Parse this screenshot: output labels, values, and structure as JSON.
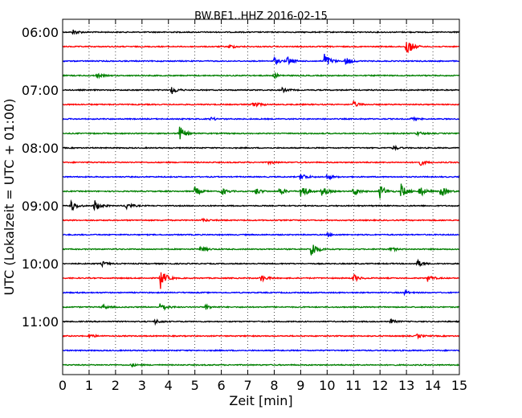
{
  "chart_data": {
    "type": "line",
    "title": "BW.BE1..HHZ 2016-02-15",
    "xlabel": "Zeit  [min]",
    "ylabel": "UTC (Lokalzeit = UTC + 01:00)",
    "xlim": [
      0,
      15
    ],
    "x_ticks": [
      "0",
      "1",
      "2",
      "3",
      "4",
      "5",
      "6",
      "7",
      "8",
      "9",
      "10",
      "11",
      "12",
      "13",
      "14",
      "15"
    ],
    "y_tick_labels": [
      "06:00",
      "07:00",
      "08:00",
      "09:00",
      "10:00",
      "11:00"
    ],
    "grid": "vertical dotted",
    "colors": [
      "#000000",
      "#ff0000",
      "#0000ff",
      "#008000"
    ],
    "traces": [
      {
        "start": "06:00",
        "events": [
          {
            "x": 0.4,
            "amp": 0.25
          }
        ]
      },
      {
        "start": "06:15",
        "events": [
          {
            "x": 13.0,
            "amp": 1.0
          },
          {
            "x": 6.3,
            "amp": 0.2
          }
        ]
      },
      {
        "start": "06:30",
        "events": [
          {
            "x": 8.0,
            "amp": 0.35
          },
          {
            "x": 8.5,
            "amp": 0.4
          },
          {
            "x": 9.9,
            "amp": 0.8
          },
          {
            "x": 10.7,
            "amp": 0.4
          }
        ]
      },
      {
        "start": "06:45",
        "events": [
          {
            "x": 1.3,
            "amp": 0.2
          },
          {
            "x": 8.0,
            "amp": 0.2
          }
        ]
      },
      {
        "start": "07:00",
        "events": [
          {
            "x": 4.1,
            "amp": 0.45
          },
          {
            "x": 8.3,
            "amp": 0.2
          }
        ]
      },
      {
        "start": "07:15",
        "events": [
          {
            "x": 7.2,
            "amp": 0.4
          },
          {
            "x": 11.0,
            "amp": 0.3
          }
        ]
      },
      {
        "start": "07:30",
        "events": [
          {
            "x": 5.6,
            "amp": 0.15
          },
          {
            "x": 13.2,
            "amp": 0.15
          }
        ]
      },
      {
        "start": "07:45",
        "events": [
          {
            "x": 4.4,
            "amp": 0.8
          },
          {
            "x": 13.4,
            "amp": 0.2
          }
        ]
      },
      {
        "start": "08:00",
        "events": [
          {
            "x": 12.5,
            "amp": 0.2
          }
        ]
      },
      {
        "start": "08:15",
        "events": [
          {
            "x": 13.5,
            "amp": 0.3
          },
          {
            "x": 7.8,
            "amp": 0.15
          }
        ]
      },
      {
        "start": "08:30",
        "events": [
          {
            "x": 9.0,
            "amp": 0.4
          },
          {
            "x": 10.0,
            "amp": 0.25
          }
        ]
      },
      {
        "start": "08:45",
        "events": [
          {
            "x": 5.0,
            "amp": 0.45
          },
          {
            "x": 6.0,
            "amp": 0.4
          },
          {
            "x": 7.3,
            "amp": 0.35
          },
          {
            "x": 8.2,
            "amp": 0.4
          },
          {
            "x": 9.0,
            "amp": 1.0
          },
          {
            "x": 9.8,
            "amp": 0.5
          },
          {
            "x": 11.0,
            "amp": 0.5
          },
          {
            "x": 12.0,
            "amp": 0.7
          },
          {
            "x": 12.8,
            "amp": 0.7
          },
          {
            "x": 13.5,
            "amp": 0.55
          },
          {
            "x": 14.3,
            "amp": 0.6
          }
        ]
      },
      {
        "start": "09:00",
        "events": [
          {
            "x": 0.3,
            "amp": 0.6
          },
          {
            "x": 1.2,
            "amp": 0.6
          },
          {
            "x": 2.4,
            "amp": 0.35
          }
        ]
      },
      {
        "start": "09:15",
        "events": [
          {
            "x": 5.3,
            "amp": 0.15
          }
        ]
      },
      {
        "start": "09:30",
        "events": [
          {
            "x": 10.0,
            "amp": 0.15
          }
        ]
      },
      {
        "start": "09:45",
        "events": [
          {
            "x": 5.2,
            "amp": 0.3
          },
          {
            "x": 9.4,
            "amp": 0.9
          },
          {
            "x": 12.4,
            "amp": 0.2
          }
        ]
      },
      {
        "start": "10:00",
        "events": [
          {
            "x": 1.5,
            "amp": 0.2
          },
          {
            "x": 13.4,
            "amp": 0.35
          }
        ]
      },
      {
        "start": "10:15",
        "events": [
          {
            "x": 3.7,
            "amp": 1.0
          },
          {
            "x": 7.5,
            "amp": 0.35
          },
          {
            "x": 11.0,
            "amp": 0.35
          },
          {
            "x": 13.8,
            "amp": 0.3
          }
        ]
      },
      {
        "start": "10:30",
        "events": [
          {
            "x": 12.9,
            "amp": 0.2
          }
        ]
      },
      {
        "start": "10:45",
        "events": [
          {
            "x": 3.7,
            "amp": 0.5
          },
          {
            "x": 5.4,
            "amp": 0.25
          },
          {
            "x": 1.5,
            "amp": 0.2
          }
        ]
      },
      {
        "start": "11:00",
        "events": [
          {
            "x": 3.5,
            "amp": 0.2
          },
          {
            "x": 12.4,
            "amp": 0.2
          }
        ]
      },
      {
        "start": "11:15",
        "events": [
          {
            "x": 1.0,
            "amp": 0.2
          },
          {
            "x": 13.4,
            "amp": 0.2
          }
        ]
      },
      {
        "start": "11:30",
        "events": []
      },
      {
        "start": "11:45",
        "events": [
          {
            "x": 2.6,
            "amp": 0.15
          }
        ]
      }
    ]
  }
}
